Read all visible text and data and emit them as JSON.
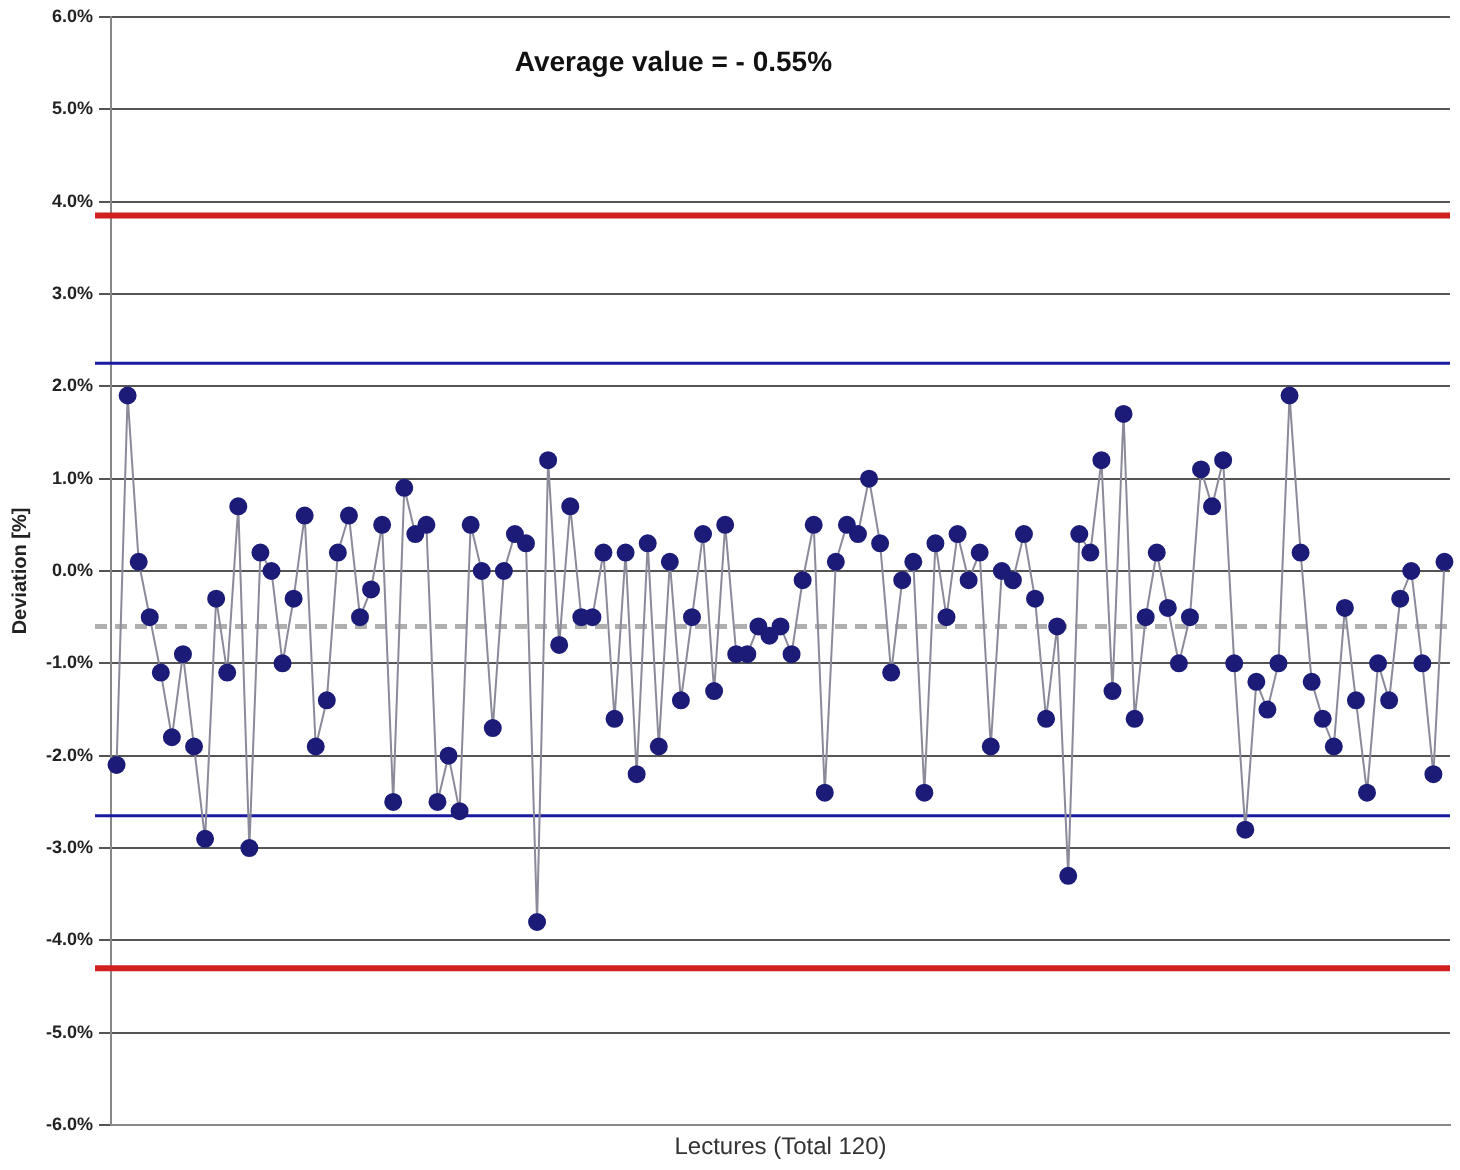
{
  "chart_data": {
    "type": "line",
    "xlabel": "Lectures (Total 120)",
    "ylabel": "Deviation [%]",
    "annotations": [
      "Average value = - 0.55%"
    ],
    "categories": [
      null,
      null,
      null,
      null,
      null,
      null,
      null,
      null,
      null,
      null,
      null,
      null,
      null,
      null,
      null,
      null,
      null,
      null,
      null,
      null,
      null,
      null,
      null,
      null,
      null,
      null,
      null,
      null,
      null,
      null,
      null,
      null,
      null,
      null,
      null,
      null,
      null,
      null,
      null,
      null,
      null,
      null,
      null,
      null,
      null,
      null,
      null,
      null,
      null,
      null,
      null,
      null,
      null,
      null,
      null,
      null,
      null,
      null,
      null,
      null,
      null,
      null,
      null,
      null,
      null,
      null,
      null,
      null,
      null,
      null,
      null,
      null,
      null,
      null,
      null,
      null,
      null,
      null,
      null,
      null,
      null,
      null,
      null,
      null,
      null,
      null,
      null,
      null,
      null,
      null,
      null,
      null,
      null,
      null,
      null,
      null,
      null,
      null,
      null,
      null,
      null,
      null,
      null,
      null,
      null,
      null,
      null,
      null,
      null,
      null,
      null,
      null,
      null,
      null,
      null,
      null,
      null,
      null,
      null,
      null,
      null
    ],
    "series": [
      {
        "color": "#1c1c78",
        "values": [
          -2.1,
          1.9,
          0.1,
          -0.5,
          -1.1,
          -1.8,
          -0.9,
          -1.9,
          -2.9,
          -0.3,
          -1.1,
          0.7,
          -3.0,
          0.2,
          0.0,
          -1.0,
          -0.3,
          0.6,
          -1.9,
          -1.4,
          0.2,
          0.6,
          -0.5,
          -0.2,
          0.5,
          -2.5,
          0.9,
          0.4,
          0.5,
          -2.5,
          -2.0,
          -2.6,
          0.5,
          0.0,
          -1.7,
          0.0,
          0.4,
          0.3,
          -3.8,
          1.2,
          -0.8,
          0.7,
          -0.5,
          -0.5,
          0.2,
          -1.6,
          0.2,
          -2.2,
          0.3,
          -1.9,
          0.1,
          -1.4,
          -0.5,
          0.4,
          -1.3,
          0.5,
          -0.9,
          -0.9,
          -0.6,
          -0.7,
          -0.6,
          -0.9,
          -0.1,
          0.5,
          -2.4,
          0.1,
          0.5,
          0.4,
          1.0,
          0.3,
          -1.1,
          -0.1,
          0.1,
          -2.4,
          0.3,
          -0.5,
          0.4,
          -0.1,
          0.2,
          -1.9,
          0.0,
          -0.1,
          0.4,
          -0.3,
          -1.6,
          -0.6,
          -3.3,
          0.4,
          0.2,
          1.2,
          -1.3,
          1.7,
          -1.6,
          -0.5,
          0.2,
          -0.4,
          -1.0,
          -0.5,
          1.1,
          0.7,
          1.2,
          -1.0,
          -2.8,
          -1.2,
          -1.5,
          -1.0,
          1.9,
          0.2,
          -1.2,
          -1.6,
          -1.9,
          -0.4,
          -1.4,
          -2.4,
          -1.0,
          -1.4,
          -0.3,
          0.0,
          -1.0,
          -2.2,
          0.1
        ]
      }
    ],
    "ylim": [
      -6,
      6
    ],
    "yticks": [
      {
        "value": -6,
        "label": "-6.0%"
      },
      {
        "value": -5,
        "label": "-5.0%"
      },
      {
        "value": -4,
        "label": "-4.0%"
      },
      {
        "value": -3,
        "label": "-3.0%"
      },
      {
        "value": -2,
        "label": "-2.0%"
      },
      {
        "value": -1,
        "label": "-1.0%"
      },
      {
        "value": 0,
        "label": "0.0%"
      },
      {
        "value": 1,
        "label": "1.0%"
      },
      {
        "value": 2,
        "label": "2.0%"
      },
      {
        "value": 3,
        "label": "3.0%"
      },
      {
        "value": 4,
        "label": "4.0%"
      },
      {
        "value": 5,
        "label": "5.0%"
      },
      {
        "value": 6,
        "label": "6.0%"
      }
    ],
    "ref_lines": [
      {
        "axis": "y",
        "value": 3.85,
        "color": "#d02020"
      },
      {
        "axis": "y",
        "value": 2.25,
        "color": "#1a1aa0"
      },
      {
        "axis": "y",
        "value": -0.6,
        "color": "#b0b0b0",
        "line_style": "dashed"
      },
      {
        "axis": "y",
        "value": -2.65,
        "color": "#1a1aa0"
      },
      {
        "axis": "y",
        "value": -4.3,
        "color": "#d02020"
      }
    ],
    "grid": "y",
    "legend": false,
    "marker": "circle",
    "line_style": "solid",
    "tick_labels": "y"
  }
}
